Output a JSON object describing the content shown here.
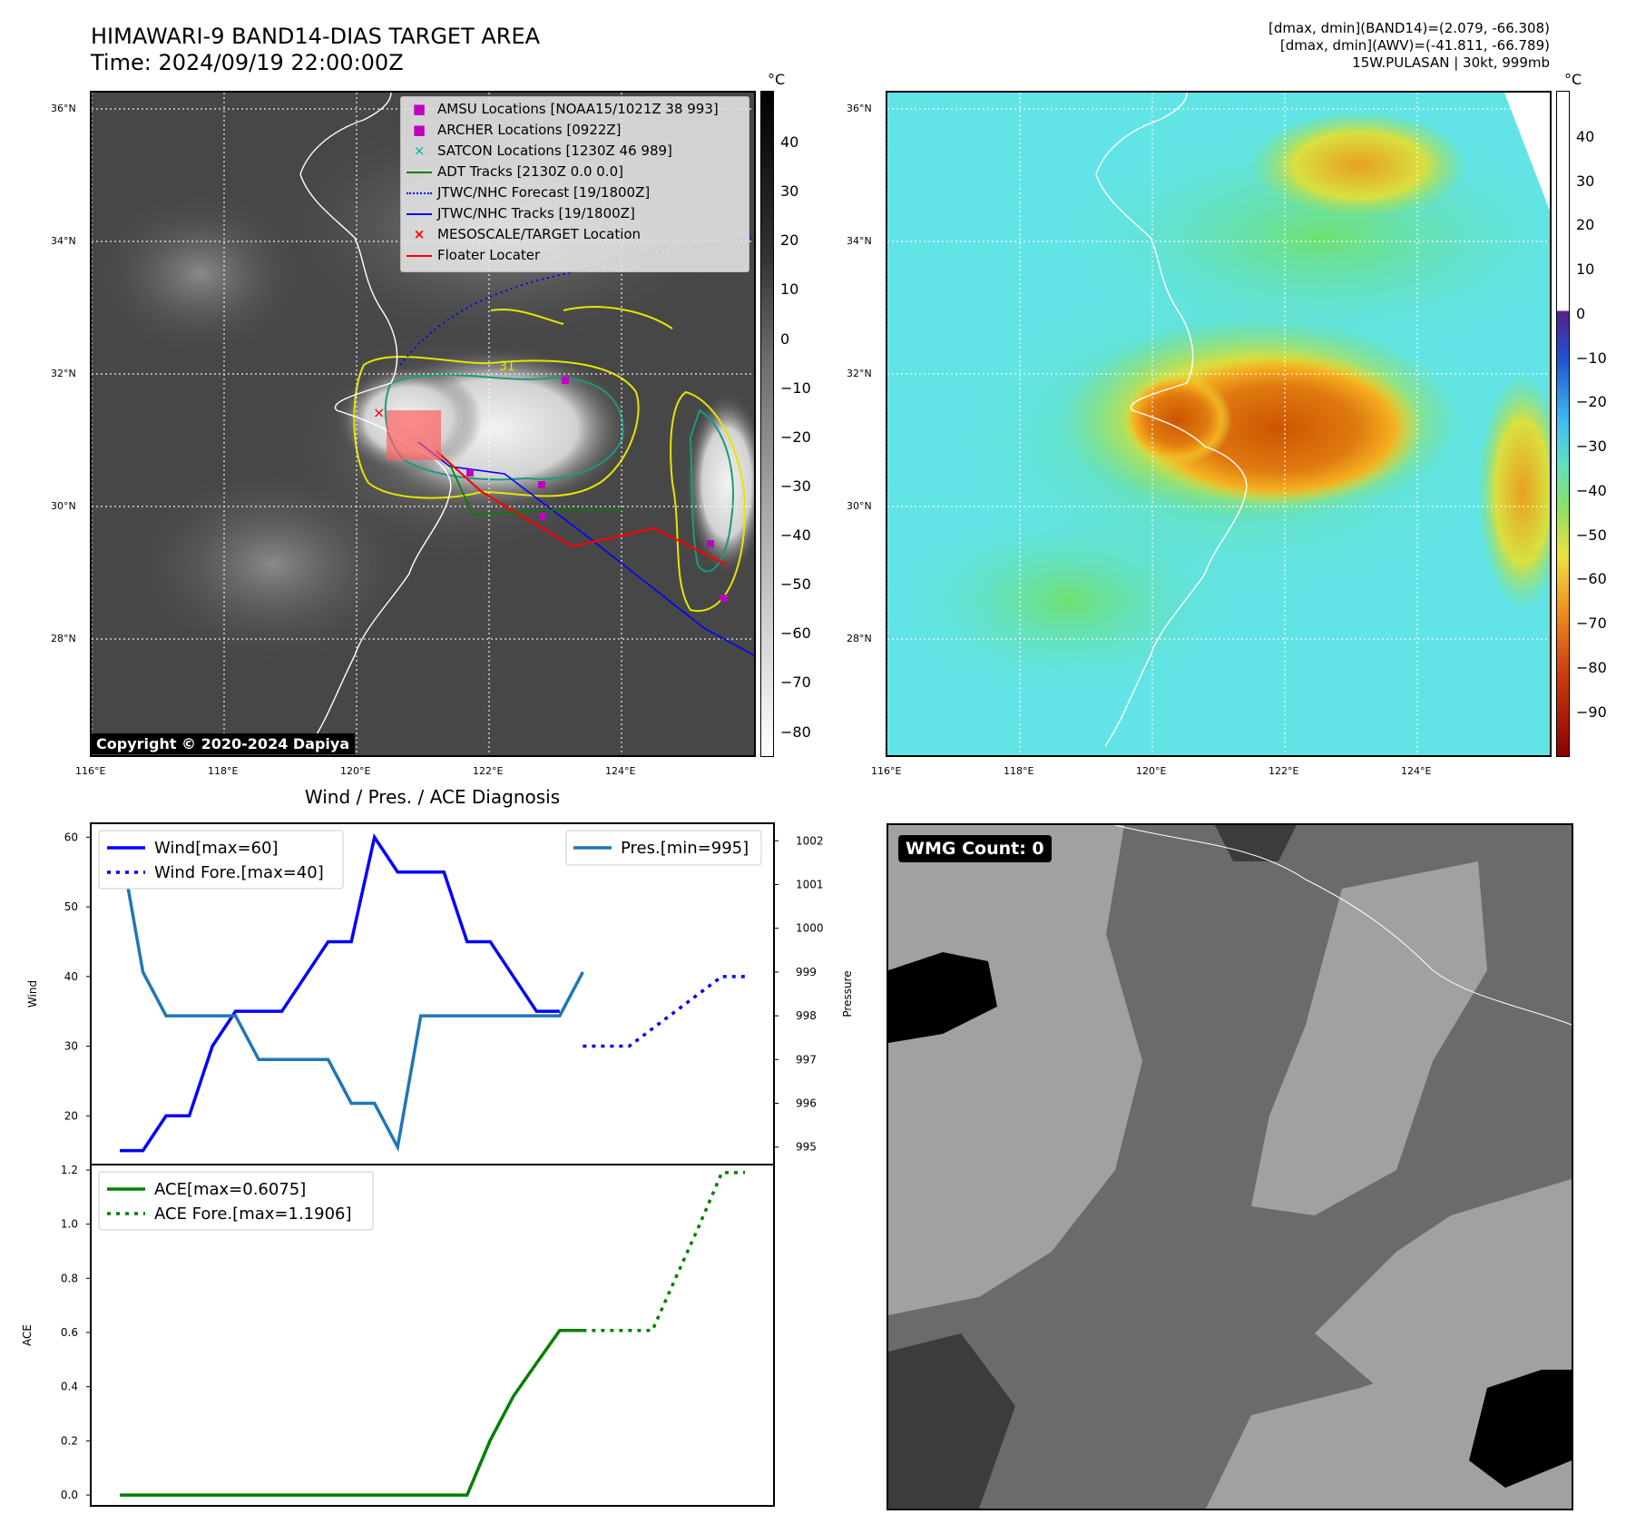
{
  "header": {
    "title_line1": "HIMAWARI-9 BAND14-DIAS TARGET AREA",
    "title_line2": "Time: 2024/09/19 22:00:00Z",
    "stats_line1": "[dmax, dmin](BAND14)=(2.079, -66.308)",
    "stats_line2": "[dmax, dmin](AWV)=(-41.811, -66.789)",
    "stats_line3": "15W.PULASAN | 30kt, 999mb"
  },
  "map_ir": {
    "lat_labels": [
      "36°N",
      "34°N",
      "32°N",
      "30°N",
      "28°N"
    ],
    "lon_labels": [
      "116°E",
      "118°E",
      "120°E",
      "122°E",
      "124°E"
    ],
    "copyright": "Copyright © 2020-2024 Dapiya",
    "contour_label": "31",
    "colorbar_unit": "°C",
    "colorbar_ticks": [
      "40",
      "30",
      "20",
      "10",
      "0",
      "−10",
      "−20",
      "−30",
      "−40",
      "−50",
      "−60",
      "−70",
      "−80"
    ],
    "legend": [
      "AMSU Locations [NOAA15/1021Z 38 993]",
      "ARCHER Locations [0922Z]",
      "SATCON Locations [1230Z 46 989]",
      "ADT Tracks [2130Z 0.0 0.0]",
      "JTWC/NHC Forecast [19/1800Z]",
      "JTWC/NHC Tracks [19/1800Z]",
      "MESOSCALE/TARGET Location",
      "Floater Locater"
    ]
  },
  "map_wv": {
    "lat_labels": [
      "36°N",
      "34°N",
      "32°N",
      "30°N",
      "28°N"
    ],
    "lon_labels": [
      "116°E",
      "118°E",
      "120°E",
      "122°E",
      "124°E"
    ],
    "colorbar_unit": "°C",
    "colorbar_ticks": [
      "40",
      "30",
      "20",
      "10",
      "0",
      "−10",
      "−20",
      "−30",
      "−40",
      "−50",
      "−60",
      "−70",
      "−80",
      "−90"
    ]
  },
  "wmg": {
    "label": "WMG Count: 0"
  },
  "colors": {
    "wind": "#0000ff",
    "pressure": "#1f77b4",
    "ace": "#008000",
    "track_red": "#ff0000",
    "archer": "#c000c0",
    "satcon": "#00b0a0"
  },
  "chart_data": [
    {
      "type": "line",
      "title": "Wind / Pres. / ACE Diagnosis",
      "ylabel": "Wind",
      "ylabel_right": "Pressure",
      "ylim": [
        13,
        62
      ],
      "ylim_right": [
        994.6,
        1002.4
      ],
      "yticks": [
        20,
        30,
        40,
        50,
        60
      ],
      "yticks_right": [
        995,
        996,
        997,
        998,
        999,
        1000,
        1001,
        1002
      ],
      "legend_left": [
        "Wind[max=60]",
        "Wind Fore.[max=40]"
      ],
      "legend_right": [
        "Pres.[min=995]"
      ],
      "x_steps": 28,
      "series": [
        {
          "name": "Wind",
          "axis": "left",
          "style": "solid",
          "x": [
            0,
            1,
            2,
            3,
            4,
            5,
            6,
            7,
            8,
            9,
            10,
            11,
            12,
            13,
            14,
            15,
            16,
            17,
            18,
            19
          ],
          "values": [
            15,
            15,
            20,
            20,
            30,
            35,
            35,
            35,
            40,
            45,
            45,
            60,
            55,
            55,
            55,
            45,
            45,
            40,
            35,
            35
          ]
        },
        {
          "name": "Wind Fore.",
          "axis": "left",
          "style": "dotted",
          "x": [
            20,
            21,
            22,
            23,
            24,
            25,
            26,
            27
          ],
          "values": [
            30,
            30,
            30,
            32.5,
            35,
            37.5,
            40,
            40
          ]
        },
        {
          "name": "Pres.",
          "axis": "right",
          "style": "solid",
          "x": [
            0,
            1,
            2,
            3,
            4,
            5,
            6,
            7,
            8,
            9,
            10,
            11,
            12,
            13,
            14,
            15,
            16,
            17,
            18,
            19,
            20
          ],
          "values": [
            1002,
            999,
            998,
            998,
            998,
            998,
            997,
            997,
            997,
            997,
            996,
            996,
            995,
            998,
            998,
            998,
            998,
            998,
            998,
            998,
            999
          ]
        }
      ]
    },
    {
      "type": "line",
      "ylabel": "ACE",
      "ylim": [
        -0.04,
        1.22
      ],
      "yticks": [
        0.0,
        0.2,
        0.4,
        0.6,
        0.8,
        1.0,
        1.2
      ],
      "ytick_labels": [
        "0.0",
        "0.2",
        "0.4",
        "0.6",
        "0.8",
        "1.0",
        "1.2"
      ],
      "legend": [
        "ACE[max=0.6075]",
        "ACE Fore.[max=1.1906]"
      ],
      "series": [
        {
          "name": "ACE",
          "style": "solid",
          "x": [
            0,
            1,
            2,
            3,
            4,
            5,
            6,
            7,
            8,
            9,
            10,
            11,
            12,
            13,
            14,
            15,
            16,
            17,
            18,
            19,
            20
          ],
          "values": [
            0,
            0,
            0,
            0,
            0,
            0,
            0,
            0,
            0,
            0,
            0,
            0,
            0,
            0,
            0,
            0,
            0.2025,
            0.3645,
            0.4869,
            0.6075,
            0.6075
          ]
        },
        {
          "name": "ACE Fore.",
          "style": "dotted",
          "x": [
            20,
            21,
            22,
            23,
            24,
            25,
            26,
            27
          ],
          "values": [
            0.6075,
            0.6075,
            0.6075,
            0.6075,
            0.8,
            0.99,
            1.19,
            1.1906
          ]
        }
      ]
    }
  ]
}
